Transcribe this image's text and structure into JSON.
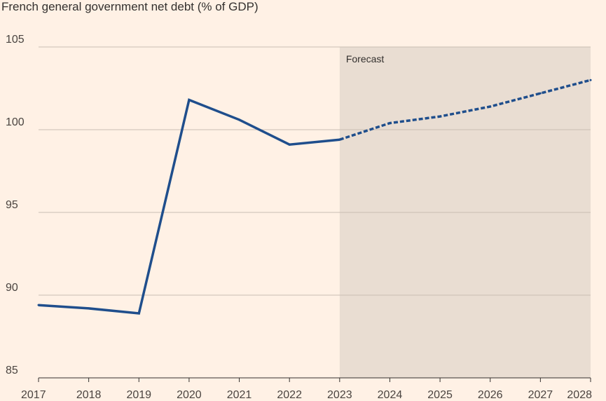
{
  "chart_data": {
    "type": "line",
    "title": "French general government net debt (% of GDP)",
    "xlabel": "",
    "ylabel": "",
    "x": [
      "2017",
      "2018",
      "2019",
      "2020",
      "2021",
      "2022",
      "2023",
      "2024",
      "2025",
      "2026",
      "2027",
      "2028"
    ],
    "series": [
      {
        "values": [
          89.4,
          89.2,
          88.9,
          101.8,
          100.6,
          99.1,
          99.4,
          100.4,
          100.8,
          101.4,
          102.2,
          103.0
        ],
        "color": "#1f4e8c",
        "style_by_segment": "solid until 2023, dashed after"
      }
    ],
    "actual_until": "2023",
    "forecast": {
      "label": "Forecast",
      "start": "2023",
      "end": "2028",
      "shade_color": "#e9ddd2"
    },
    "ylim": [
      85,
      105
    ],
    "yticks": [
      85,
      90,
      95,
      100,
      105
    ],
    "grid": "horizontal",
    "gridline_color": "#c9bdb3",
    "background_color": "#fff1e5"
  }
}
